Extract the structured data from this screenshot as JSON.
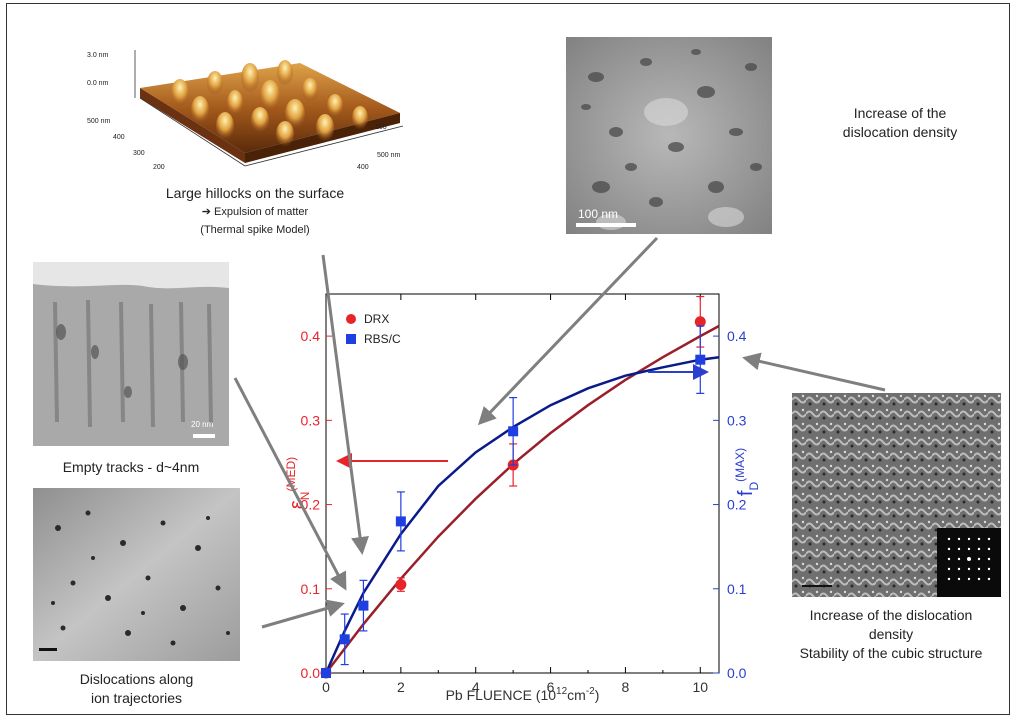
{
  "figure": {
    "captions": {
      "afm": [
        "Large hillocks on the surface",
        "➔ Expulsion of matter",
        "(Thermal spike Model)"
      ],
      "tem_top": [
        "Increase of the",
        "dislocation density"
      ],
      "tracks": "Empty tracks - d~4nm",
      "dislocations": [
        "Dislocations along",
        "ion trajectories"
      ],
      "tem_right": [
        "Increase of the dislocation",
        "density",
        "Stability of the cubic structure"
      ]
    },
    "afm_labels": {
      "z_top": "3.0 nm",
      "z_zero": "0.0 nm",
      "y_ticks": [
        "500 nm",
        "400",
        "300",
        "200"
      ],
      "x_ticks": [
        "100",
        "500 nm",
        "400"
      ]
    },
    "scale_bars": {
      "tem_top": "100 nm",
      "tracks": "20 nm"
    }
  },
  "chart_data": {
    "type": "scatter",
    "xlabel_main": "Pb FLUENCE  (10",
    "xlabel_exp": "12",
    "xlabel_unit": "cm",
    "xlabel_unit_exp": "-2",
    "xlabel_close": ")",
    "ylabel_left": {
      "symbol": "ε",
      "sub": "N",
      "sup": "(MED)"
    },
    "ylabel_right": {
      "symbol": "f",
      "sub": "D",
      "sup": "(MAX)"
    },
    "xlim": [
      0,
      10.5
    ],
    "x_ticks": [
      0,
      2,
      4,
      6,
      8,
      10
    ],
    "ylim_left": [
      0,
      0.45
    ],
    "y_ticks_left": [
      "0.0",
      "0.1",
      "0.2",
      "0.3",
      "0.4"
    ],
    "ylim_right": [
      0,
      0.45
    ],
    "y_ticks_right": [
      "0.0",
      "0.1",
      "0.2",
      "0.3",
      "0.4"
    ],
    "colors": {
      "left_axis": "#e8242a",
      "right_axis": "#2a3ed0",
      "drx_curve": "#9a1f2a",
      "rbs_curve": "#0a1a8a",
      "drx": "#e8242a",
      "rbs": "#1f3fe0"
    },
    "legend": [
      "DRX",
      "RBS/C"
    ],
    "series": [
      {
        "name": "DRX",
        "marker": "circle",
        "axis": "left",
        "points": [
          [
            0,
            0
          ],
          [
            2,
            0.105
          ],
          [
            5,
            0.247
          ],
          [
            10,
            0.417
          ]
        ],
        "yerr": [
          0,
          0.008,
          0.025,
          0.03
        ]
      },
      {
        "name": "RBS/C",
        "marker": "square",
        "axis": "right",
        "points": [
          [
            0,
            0
          ],
          [
            0.5,
            0.04
          ],
          [
            1,
            0.08
          ],
          [
            2,
            0.18
          ],
          [
            5,
            0.287
          ],
          [
            10,
            0.372
          ]
        ],
        "yerr": [
          0,
          0.03,
          0.03,
          0.035,
          0.04,
          0.04
        ]
      }
    ],
    "fits": [
      {
        "name": "DRX",
        "points": [
          [
            0,
            0
          ],
          [
            1,
            0.058
          ],
          [
            2,
            0.112
          ],
          [
            3,
            0.162
          ],
          [
            4,
            0.207
          ],
          [
            5,
            0.248
          ],
          [
            6,
            0.285
          ],
          [
            7,
            0.318
          ],
          [
            8,
            0.348
          ],
          [
            9,
            0.375
          ],
          [
            10,
            0.4
          ],
          [
            10.5,
            0.412
          ]
        ]
      },
      {
        "name": "RBS/C",
        "points": [
          [
            0,
            0
          ],
          [
            0.5,
            0.05
          ],
          [
            1,
            0.095
          ],
          [
            2,
            0.165
          ],
          [
            3,
            0.222
          ],
          [
            4,
            0.262
          ],
          [
            5,
            0.292
          ],
          [
            6,
            0.318
          ],
          [
            7,
            0.338
          ],
          [
            8,
            0.353
          ],
          [
            9,
            0.363
          ],
          [
            10,
            0.372
          ],
          [
            10.5,
            0.375
          ]
        ]
      }
    ]
  }
}
